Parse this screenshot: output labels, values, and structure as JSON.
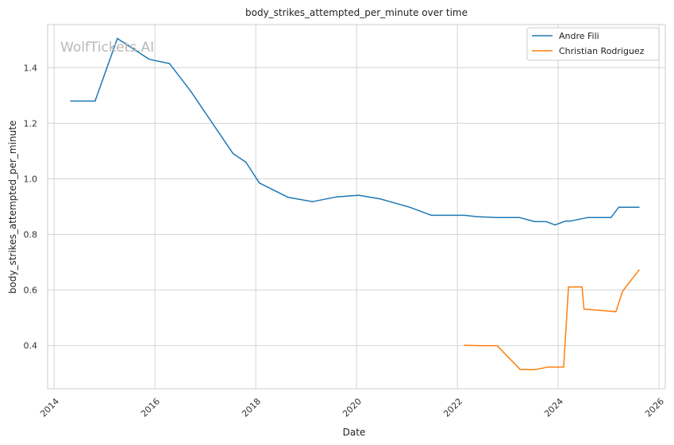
{
  "watermark": "WolfTickets.AI",
  "chart_data": {
    "type": "line",
    "title": "body_strikes_attempted_per_minute over time",
    "xlabel": "Date",
    "ylabel": "body_strikes_attempted_per_minute",
    "xlim": [
      "2013-11-15",
      "2026-02-15"
    ],
    "ylim": [
      0.245,
      1.555
    ],
    "x_ticks": [
      "2014",
      "2016",
      "2018",
      "2020",
      "2022",
      "2024",
      "2026"
    ],
    "y_ticks": [
      "0.4",
      "0.6",
      "0.8",
      "1.0",
      "1.2",
      "1.4"
    ],
    "grid": true,
    "legend_position": "top-right",
    "series": [
      {
        "name": "Andre Fili",
        "color": "#1f77b4",
        "points": [
          [
            "2014-05-01",
            1.28
          ],
          [
            "2014-10-25",
            1.28
          ],
          [
            "2015-04-04",
            1.505
          ],
          [
            "2015-11-21",
            1.43
          ],
          [
            "2016-04-16",
            1.415
          ],
          [
            "2016-09-17",
            1.315
          ],
          [
            "2017-07-22",
            1.09
          ],
          [
            "2017-10-21",
            1.06
          ],
          [
            "2018-01-27",
            0.985
          ],
          [
            "2018-08-25",
            0.933
          ],
          [
            "2019-02-17",
            0.918
          ],
          [
            "2019-08-10",
            0.935
          ],
          [
            "2020-01-18",
            0.941
          ],
          [
            "2020-06-20",
            0.928
          ],
          [
            "2021-01-20",
            0.898
          ],
          [
            "2021-06-26",
            0.869
          ],
          [
            "2022-02-19",
            0.869
          ],
          [
            "2022-05-21",
            0.864
          ],
          [
            "2022-10-15",
            0.861
          ],
          [
            "2023-03-25",
            0.861
          ],
          [
            "2023-07-15",
            0.846
          ],
          [
            "2023-10-07",
            0.846
          ],
          [
            "2023-12-09",
            0.834
          ],
          [
            "2024-02-24",
            0.848
          ],
          [
            "2024-03-30",
            0.848
          ],
          [
            "2024-08-03",
            0.861
          ],
          [
            "2025-01-18",
            0.861
          ],
          [
            "2025-03-15",
            0.898
          ],
          [
            "2025-08-09",
            0.898
          ]
        ]
      },
      {
        "name": "Christian Rodriguez",
        "color": "#ff7f0e",
        "points": [
          [
            "2022-02-19",
            0.401
          ],
          [
            "2022-06-25",
            0.4
          ],
          [
            "2022-10-15",
            0.4
          ],
          [
            "2023-04-01",
            0.314
          ],
          [
            "2023-07-22",
            0.314
          ],
          [
            "2023-10-21",
            0.323
          ],
          [
            "2024-02-10",
            0.323
          ],
          [
            "2024-03-16",
            0.611
          ],
          [
            "2024-06-22",
            0.611
          ],
          [
            "2024-07-06",
            0.531
          ],
          [
            "2025-02-22",
            0.522
          ],
          [
            "2025-04-12",
            0.596
          ],
          [
            "2025-08-09",
            0.672
          ]
        ]
      }
    ]
  }
}
